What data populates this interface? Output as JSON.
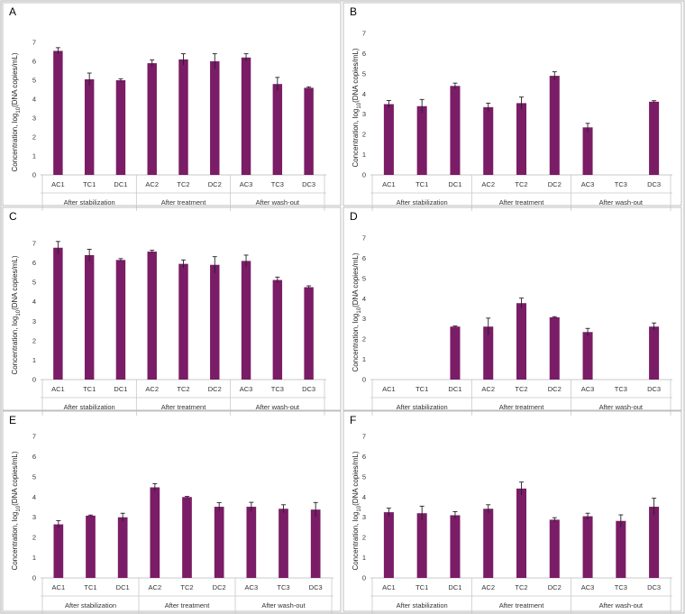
{
  "colors": {
    "bar": "#7a1c66",
    "border": "#b0b0b0",
    "axis": "#c8c8c8",
    "text": "#222222",
    "error_bar": "#222222"
  },
  "chart_data": [
    {
      "panel": "A",
      "type": "bar",
      "categories": [
        "AC1",
        "TC1",
        "DC1",
        "AC2",
        "TC2",
        "DC2",
        "AC3",
        "TC3",
        "DC3"
      ],
      "groups": [
        "After stabilization",
        "After treatment",
        "After wash-out"
      ],
      "values": [
        6.55,
        5.05,
        5.0,
        5.9,
        6.1,
        6.0,
        6.2,
        4.8,
        4.6
      ],
      "errors": [
        0.17,
        0.33,
        0.08,
        0.17,
        0.3,
        0.4,
        0.2,
        0.35,
        0.05
      ],
      "ylabel": "Concentration, log10(DNA copies/mL)",
      "ylim": [
        0,
        7
      ],
      "yticks": [
        "0",
        "1",
        "2",
        "3",
        "4",
        "5",
        "6",
        "7"
      ],
      "grid": false
    },
    {
      "panel": "B",
      "type": "bar",
      "categories": [
        "AC1",
        "TC1",
        "DC1",
        "AC2",
        "TC2",
        "DC2",
        "AC3",
        "TC3",
        "DC3"
      ],
      "groups": [
        "After stabilization",
        "After treatment",
        "After wash-out"
      ],
      "values": [
        3.5,
        3.4,
        4.4,
        3.35,
        3.55,
        4.9,
        2.35,
        null,
        3.62
      ],
      "errors": [
        0.18,
        0.33,
        0.14,
        0.2,
        0.3,
        0.2,
        0.2,
        null,
        0.05
      ],
      "ylabel": "Concentration, log10(DNA copies/mL)",
      "ylim": [
        0,
        7
      ],
      "yticks": [
        "0",
        "1",
        "2",
        "3",
        "4",
        "5",
        "6",
        "7"
      ],
      "grid": false
    },
    {
      "panel": "C",
      "type": "bar",
      "categories": [
        "AC1",
        "TC1",
        "DC1",
        "AC2",
        "TC2",
        "DC2",
        "AC3",
        "TC3",
        "DC3"
      ],
      "groups": [
        "After stabilization",
        "After treatment",
        "After wash-out"
      ],
      "values": [
        6.78,
        6.4,
        6.15,
        6.58,
        5.95,
        5.9,
        6.1,
        5.12,
        4.75
      ],
      "errors": [
        0.32,
        0.3,
        0.07,
        0.07,
        0.2,
        0.42,
        0.3,
        0.15,
        0.07
      ],
      "ylabel": "Concentration, log10(DNA copies/mL)",
      "ylim": [
        0,
        7
      ],
      "yticks": [
        "0",
        "1",
        "2",
        "3",
        "4",
        "5",
        "6",
        "7"
      ],
      "grid": false
    },
    {
      "panel": "D",
      "type": "bar",
      "categories": [
        "AC1",
        "TC1",
        "DC1",
        "AC2",
        "TC2",
        "DC2",
        "AC3",
        "TC3",
        "DC3"
      ],
      "groups": [
        "After stabilization",
        "After treatment",
        "After wash-out"
      ],
      "values": [
        null,
        null,
        2.62,
        2.62,
        3.78,
        3.08,
        2.35,
        null,
        2.62
      ],
      "errors": [
        null,
        null,
        0.03,
        0.42,
        0.25,
        0.03,
        0.18,
        null,
        0.18
      ],
      "ylabel": "Concentration, log10(DNA copies/mL)",
      "ylim": [
        0,
        7
      ],
      "yticks": [
        "0",
        "1",
        "2",
        "3",
        "4",
        "5",
        "6",
        "7"
      ],
      "grid": false
    },
    {
      "panel": "E",
      "type": "bar",
      "categories": [
        "AC1",
        "TC1",
        "DC1",
        "AC2",
        "TC2",
        "DC2",
        "AC3",
        "TC3",
        "DC3"
      ],
      "groups": [
        "After stabilization",
        "After treatment",
        "After wash-out"
      ],
      "values": [
        2.65,
        3.08,
        3.0,
        4.48,
        4.0,
        3.52,
        3.52,
        3.42,
        3.38
      ],
      "errors": [
        0.18,
        0.03,
        0.2,
        0.18,
        0.03,
        0.2,
        0.22,
        0.2,
        0.35
      ],
      "ylabel": "Concentration, log10(DNA copies/mL)",
      "ylim": [
        0,
        7
      ],
      "yticks": [
        "0",
        "1",
        "2",
        "3",
        "4",
        "5",
        "6",
        "7"
      ],
      "grid": false
    },
    {
      "panel": "F",
      "type": "bar",
      "categories": [
        "AC1",
        "TC1",
        "DC1",
        "AC2",
        "TC2",
        "DC2",
        "AC3",
        "TC3",
        "DC3"
      ],
      "groups": [
        "After stabilization",
        "After treatment",
        "After wash-out"
      ],
      "values": [
        3.25,
        3.2,
        3.1,
        3.42,
        4.42,
        2.88,
        3.05,
        2.82,
        3.52
      ],
      "errors": [
        0.2,
        0.35,
        0.18,
        0.2,
        0.32,
        0.1,
        0.15,
        0.3,
        0.42
      ],
      "ylabel": "Concentration, log10(DNA copies/mL)",
      "ylim": [
        0,
        7
      ],
      "yticks": [
        "0",
        "1",
        "2",
        "3",
        "4",
        "5",
        "6",
        "7"
      ],
      "grid": false
    }
  ]
}
